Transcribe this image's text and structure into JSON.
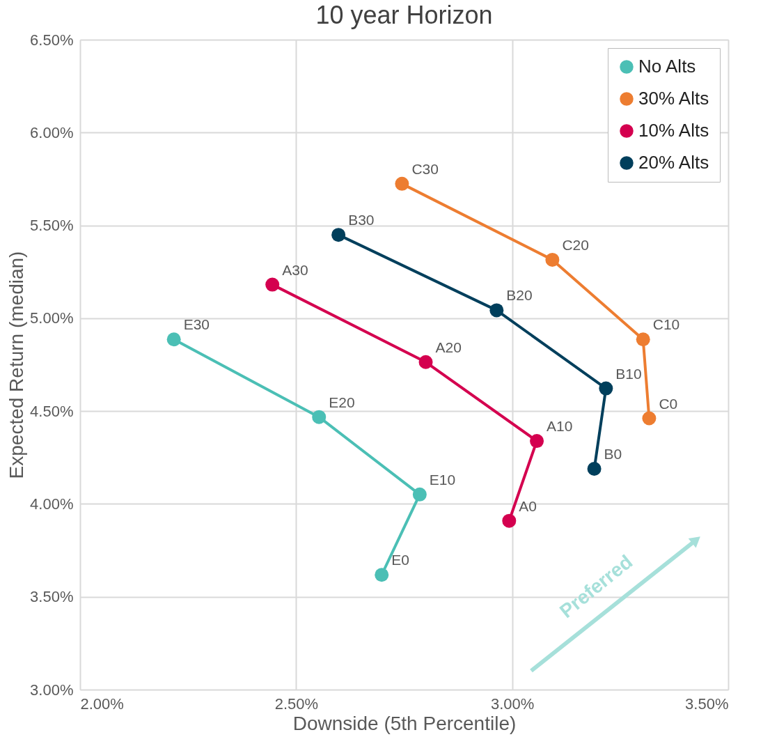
{
  "chart_data": {
    "type": "line",
    "title": "10  year Horizon",
    "xlabel": "Downside (5th Percentile)",
    "ylabel": "Expected Return (median)",
    "xlim": [
      2.0,
      3.5
    ],
    "xticks": [
      {
        "value": 2.0,
        "label": "2.00%"
      },
      {
        "value": 2.5,
        "label": "2.50%"
      },
      {
        "value": 3.0,
        "label": "3.00%"
      },
      {
        "value": 3.5,
        "label": "3.50%"
      }
    ],
    "ylim": [
      3.0,
      6.5
    ],
    "yticks": [
      {
        "value": 3.0,
        "label": "3.00%"
      },
      {
        "value": 3.5,
        "label": "3.50%"
      },
      {
        "value": 4.0,
        "label": "4.00%"
      },
      {
        "value": 4.5,
        "label": "4.50%"
      },
      {
        "value": 5.0,
        "label": "5.00%"
      },
      {
        "value": 5.5,
        "label": "5.50%"
      },
      {
        "value": 6.0,
        "label": "6.00%"
      },
      {
        "value": 6.5,
        "label": "6.50%"
      }
    ],
    "grid": true,
    "legend": "top right",
    "marker": "circle",
    "line_style": "solid",
    "series": [
      {
        "name": "No Alts",
        "color": "#4bbfb5",
        "x": [
          2.217,
          2.553,
          2.786,
          2.698
        ],
        "values": [
          4.886,
          4.468,
          4.051,
          3.618
        ]
      },
      {
        "name": "30% Alts",
        "color": "#ed7d31",
        "x": [
          2.745,
          3.093,
          3.303,
          3.317
        ],
        "values": [
          5.724,
          5.315,
          4.886,
          4.461
        ]
      },
      {
        "name": "10% Alts",
        "color": "#d4004f",
        "x": [
          2.445,
          2.8,
          3.057,
          2.993
        ],
        "values": [
          5.181,
          4.764,
          4.339,
          3.909
        ]
      },
      {
        "name": "20% Alts",
        "color": "#003f5c",
        "x": [
          2.598,
          2.964,
          3.217,
          3.19
        ],
        "values": [
          5.449,
          5.043,
          4.622,
          4.189
        ]
      }
    ],
    "annotations": [
      {
        "text": "E30",
        "x": 2.217,
        "y": 4.886
      },
      {
        "text": "E20",
        "x": 2.553,
        "y": 4.468
      },
      {
        "text": "E10",
        "x": 2.786,
        "y": 4.051
      },
      {
        "text": "E0",
        "x": 2.698,
        "y": 3.618
      },
      {
        "text": "C30",
        "x": 2.745,
        "y": 5.724
      },
      {
        "text": "C20",
        "x": 3.093,
        "y": 5.315
      },
      {
        "text": "C10",
        "x": 3.303,
        "y": 4.886
      },
      {
        "text": "C0",
        "x": 3.317,
        "y": 4.461
      },
      {
        "text": "A30",
        "x": 2.445,
        "y": 5.181
      },
      {
        "text": "A20",
        "x": 2.8,
        "y": 4.764
      },
      {
        "text": "A10",
        "x": 3.057,
        "y": 4.339
      },
      {
        "text": "A0",
        "x": 2.993,
        "y": 3.909
      },
      {
        "text": "B30",
        "x": 2.598,
        "y": 5.449
      },
      {
        "text": "B20",
        "x": 2.964,
        "y": 5.043
      },
      {
        "text": "B10",
        "x": 3.217,
        "y": 4.622
      },
      {
        "text": "B0",
        "x": 3.19,
        "y": 4.189
      },
      "Preferred"
    ]
  }
}
